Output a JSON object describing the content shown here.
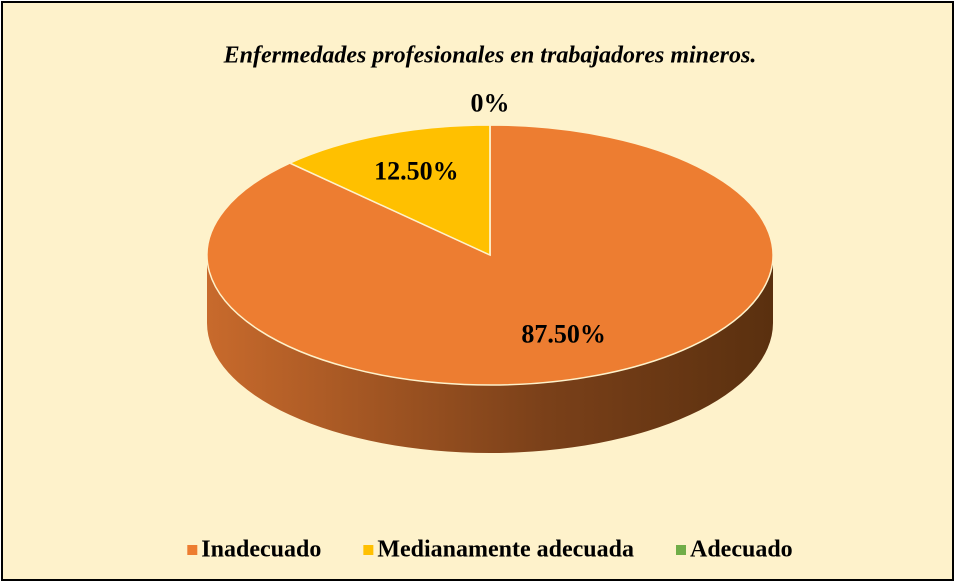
{
  "chart_data": {
    "type": "pie",
    "title": "Enfermedades profesionales en trabajadores mineros.",
    "categories": [
      "Inadecuado",
      "Medianamente adecuada",
      "Adecuado"
    ],
    "values": [
      87.5,
      12.5,
      0
    ],
    "value_labels": [
      "87.50%",
      "12.50%",
      "0%"
    ],
    "colors": [
      "#ED7D31",
      "#FFC000",
      "#70AD47"
    ],
    "legend": "bottom"
  }
}
